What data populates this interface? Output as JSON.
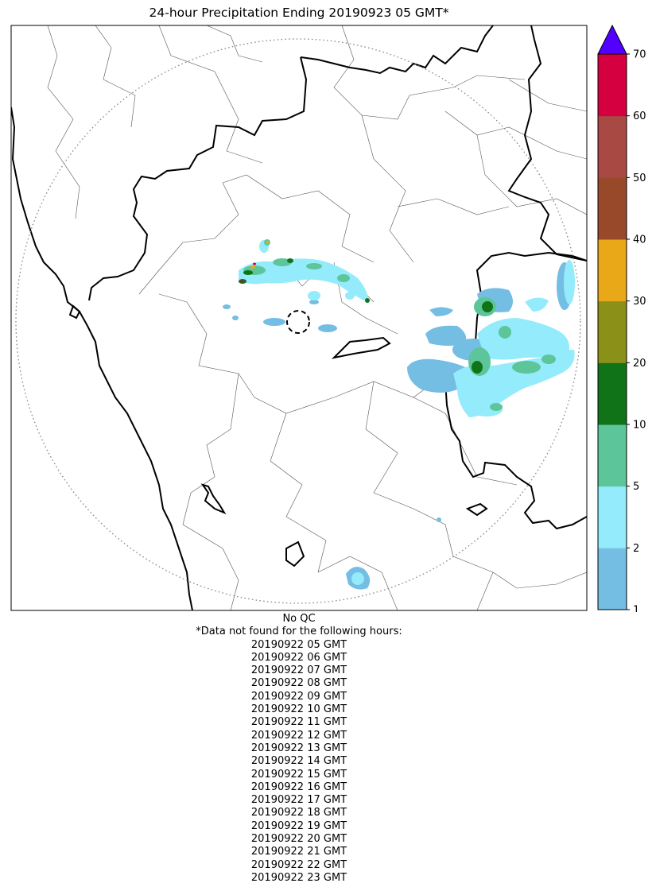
{
  "title": "24-hour Precipitation Ending 20190923 05 GMT*",
  "colorbar": {
    "levels": [
      1,
      2,
      5,
      10,
      20,
      30,
      40,
      50,
      60,
      70
    ],
    "tick_labels": [
      "1",
      "2",
      "5",
      "10",
      "20",
      "30",
      "40",
      "50",
      "60",
      "70"
    ],
    "colors": [
      "#74bde3",
      "#94ebfb",
      "#5dc59a",
      "#107318",
      "#8b9118",
      "#e8a818",
      "#98492a",
      "#a84944",
      "#d40040"
    ],
    "extend_color": "#5200ff"
  },
  "map": {
    "radar_range_ring": "dotted circle",
    "radar_site_marker": "dashed circle",
    "palette": {
      "border_thick": "#000000",
      "border_thin": "#555555",
      "range_ring": "#8a8a8a"
    }
  },
  "notes": {
    "qc": "No QC",
    "missing_header": "*Data not found for the following hours:",
    "missing_hours": [
      "20190922 05 GMT",
      "20190922 06 GMT",
      "20190922 07 GMT",
      "20190922 08 GMT",
      "20190922 09 GMT",
      "20190922 10 GMT",
      "20190922 11 GMT",
      "20190922 12 GMT",
      "20190922 13 GMT",
      "20190922 14 GMT",
      "20190922 15 GMT",
      "20190922 16 GMT",
      "20190922 17 GMT",
      "20190922 18 GMT",
      "20190922 19 GMT",
      "20190922 20 GMT",
      "20190922 21 GMT",
      "20190922 22 GMT",
      "20190922 23 GMT"
    ]
  }
}
